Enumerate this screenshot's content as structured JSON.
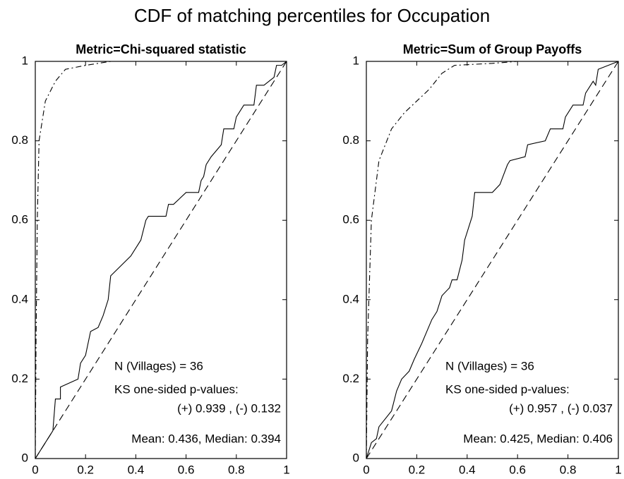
{
  "title": "CDF of matching percentiles for Occupation",
  "chart_data": [
    {
      "type": "line",
      "title": "Metric=Chi-squared statistic",
      "xlim": [
        0,
        1
      ],
      "ylim": [
        0,
        1
      ],
      "xticks": [
        0,
        0.2,
        0.4,
        0.6,
        0.8,
        1
      ],
      "yticks": [
        0,
        0.2,
        0.4,
        0.6,
        0.8,
        1
      ],
      "annotations": [
        "N (Villages) = 36",
        "KS one-sided p-values:",
        "(+) 0.939 ,  (-) 0.132",
        "Mean: 0.436,  Median: 0.394"
      ],
      "series": [
        {
          "color": "#000000",
          "style": "solid",
          "x": [
            0,
            0.07,
            0.08,
            0.1,
            0.1,
            0.17,
            0.18,
            0.2,
            0.22,
            0.25,
            0.27,
            0.29,
            0.3,
            0.38,
            0.42,
            0.44,
            0.45,
            0.52,
            0.53,
            0.55,
            0.6,
            0.65,
            0.66,
            0.67,
            0.68,
            0.7,
            0.74,
            0.75,
            0.79,
            0.8,
            0.83,
            0.87,
            0.88,
            0.91,
            0.93,
            0.95,
            0.96,
            0.98,
            1
          ],
          "values": [
            0,
            0.07,
            0.15,
            0.15,
            0.18,
            0.2,
            0.24,
            0.26,
            0.32,
            0.33,
            0.36,
            0.4,
            0.46,
            0.51,
            0.55,
            0.6,
            0.61,
            0.61,
            0.64,
            0.64,
            0.67,
            0.67,
            0.7,
            0.71,
            0.74,
            0.76,
            0.79,
            0.83,
            0.83,
            0.86,
            0.89,
            0.89,
            0.94,
            0.94,
            0.95,
            0.96,
            0.99,
            0.99,
            1
          ]
        },
        {
          "color": "#000000",
          "style": "dash-dot",
          "x": [
            0,
            0.003,
            0.008,
            0.015,
            0.04,
            0.08,
            0.12,
            0.2,
            0.3,
            1
          ],
          "values": [
            0,
            0.3,
            0.6,
            0.8,
            0.9,
            0.95,
            0.98,
            0.99,
            1,
            1
          ]
        },
        {
          "color": "#000000",
          "style": "dashed",
          "x": [
            0,
            1
          ],
          "values": [
            0,
            1
          ]
        }
      ]
    },
    {
      "type": "line",
      "title": "Metric=Sum of Group Payoffs",
      "xlim": [
        0,
        1
      ],
      "ylim": [
        0,
        1
      ],
      "xticks": [
        0,
        0.2,
        0.4,
        0.6,
        0.8,
        1
      ],
      "yticks": [
        0,
        0.2,
        0.4,
        0.6,
        0.8,
        1
      ],
      "annotations": [
        "N (Villages) = 36",
        "KS one-sided p-values:",
        "(+) 0.957 ,  (-) 0.037",
        "Mean: 0.425,  Median: 0.406"
      ],
      "series": [
        {
          "color": "#000000",
          "style": "solid",
          "x": [
            0,
            0.02,
            0.04,
            0.05,
            0.1,
            0.12,
            0.14,
            0.17,
            0.19,
            0.22,
            0.24,
            0.26,
            0.28,
            0.3,
            0.33,
            0.34,
            0.36,
            0.38,
            0.39,
            0.41,
            0.42,
            0.43,
            0.5,
            0.53,
            0.56,
            0.57,
            0.63,
            0.64,
            0.71,
            0.73,
            0.78,
            0.79,
            0.82,
            0.86,
            0.87,
            0.89,
            0.9,
            0.91,
            0.92,
            1
          ],
          "values": [
            0,
            0.04,
            0.05,
            0.08,
            0.12,
            0.17,
            0.2,
            0.22,
            0.25,
            0.29,
            0.32,
            0.35,
            0.37,
            0.41,
            0.43,
            0.45,
            0.45,
            0.5,
            0.55,
            0.59,
            0.61,
            0.67,
            0.67,
            0.69,
            0.74,
            0.75,
            0.76,
            0.79,
            0.8,
            0.83,
            0.83,
            0.86,
            0.89,
            0.89,
            0.92,
            0.94,
            0.95,
            0.94,
            0.98,
            1
          ]
        },
        {
          "color": "#000000",
          "style": "dash-dot",
          "x": [
            0,
            0.005,
            0.02,
            0.05,
            0.1,
            0.15,
            0.25,
            0.3,
            0.35,
            0.5,
            0.6,
            1
          ],
          "values": [
            0,
            0.3,
            0.6,
            0.75,
            0.83,
            0.87,
            0.93,
            0.97,
            0.99,
            0.995,
            1,
            1
          ]
        },
        {
          "color": "#000000",
          "style": "dashed",
          "x": [
            0,
            1
          ],
          "values": [
            0,
            1
          ]
        }
      ]
    }
  ]
}
